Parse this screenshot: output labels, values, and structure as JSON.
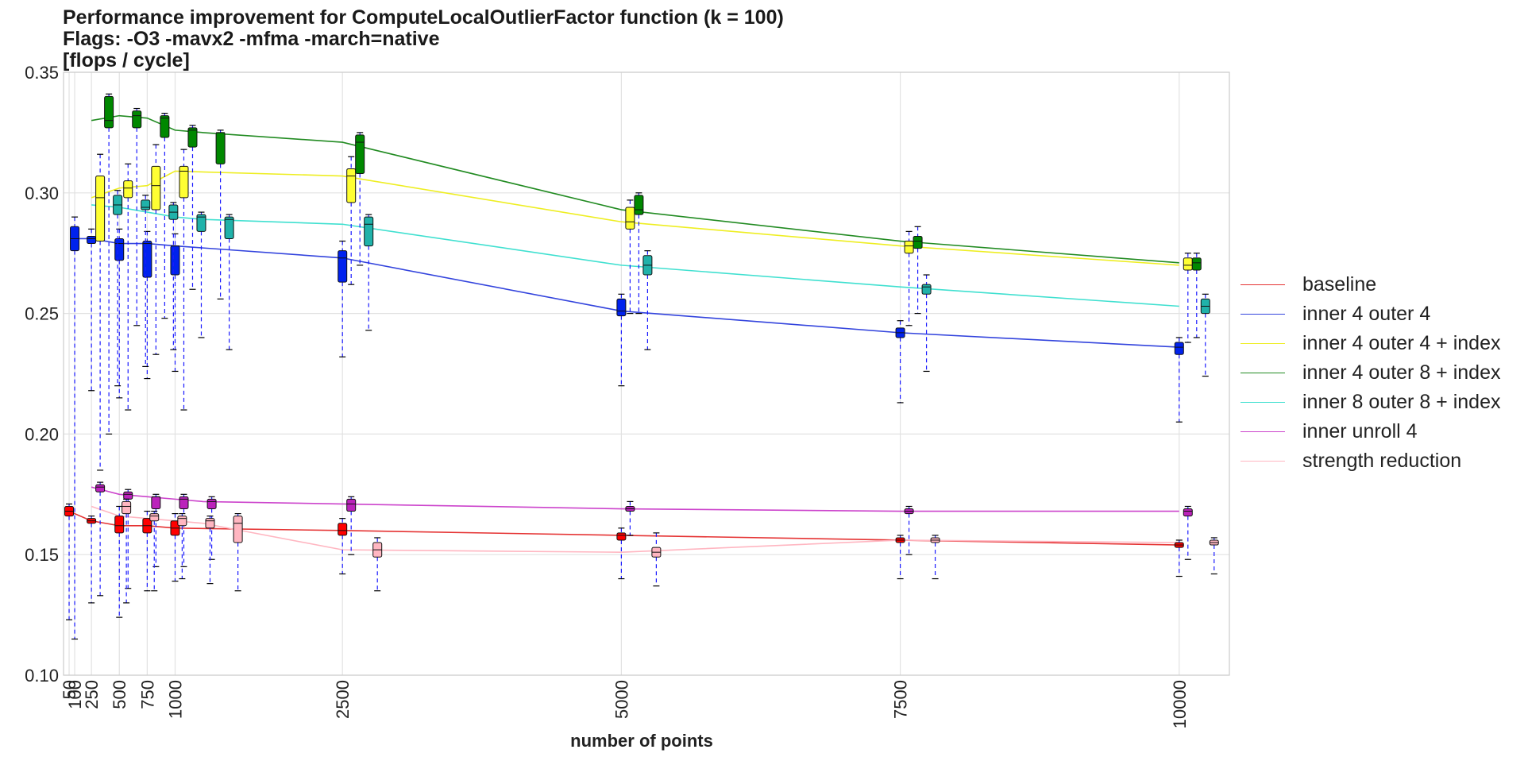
{
  "chart_data": {
    "type": "box",
    "title_lines": [
      "Performance improvement for ComputeLocalOutlierFactor function (k = 100)",
      "Flags: -O3 -mavx2 -mfma -march=native",
      "[flops / cycle]"
    ],
    "xlabel": "number of points",
    "ylabel": "",
    "xlim": [
      0,
      10450
    ],
    "ylim": [
      0.1,
      0.35
    ],
    "x_ticks": [
      50,
      100,
      250,
      500,
      750,
      1000,
      2500,
      5000,
      7500,
      10000
    ],
    "y_ticks": [
      "0.10",
      "0.15",
      "0.20",
      "0.25",
      "0.30",
      "0.35"
    ],
    "grid": true,
    "legend_position": "right",
    "series": [
      {
        "name": "baseline",
        "color": "#ff0000",
        "line_color": "#e53333",
        "offset": 0,
        "points": [
          {
            "x": 50,
            "median": 0.168,
            "q1": 0.166,
            "q3": 0.17,
            "min": 0.123,
            "max": 0.171
          },
          {
            "x": 250,
            "median": 0.164,
            "q1": 0.163,
            "q3": 0.165,
            "min": 0.13,
            "max": 0.166
          },
          {
            "x": 500,
            "median": 0.162,
            "q1": 0.159,
            "q3": 0.166,
            "min": 0.124,
            "max": 0.17
          },
          {
            "x": 750,
            "median": 0.162,
            "q1": 0.159,
            "q3": 0.165,
            "min": 0.135,
            "max": 0.168
          },
          {
            "x": 1000,
            "median": 0.161,
            "q1": 0.158,
            "q3": 0.164,
            "min": 0.139,
            "max": 0.167
          },
          {
            "x": 2500,
            "median": 0.16,
            "q1": 0.158,
            "q3": 0.163,
            "min": 0.142,
            "max": 0.165
          },
          {
            "x": 5000,
            "median": 0.158,
            "q1": 0.156,
            "q3": 0.159,
            "min": 0.14,
            "max": 0.161
          },
          {
            "x": 7500,
            "median": 0.156,
            "q1": 0.155,
            "q3": 0.157,
            "min": 0.14,
            "max": 0.158
          },
          {
            "x": 10000,
            "median": 0.154,
            "q1": 0.153,
            "q3": 0.155,
            "min": 0.141,
            "max": 0.156
          }
        ]
      },
      {
        "name": "inner 4 outer 4",
        "color": "#0022ee",
        "line_color": "#3344dd",
        "offset": 0,
        "points": [
          {
            "x": 100,
            "median": 0.281,
            "q1": 0.276,
            "q3": 0.286,
            "min": 0.115,
            "max": 0.29
          },
          {
            "x": 250,
            "median": 0.281,
            "q1": 0.279,
            "q3": 0.282,
            "min": 0.218,
            "max": 0.285
          },
          {
            "x": 500,
            "median": 0.279,
            "q1": 0.272,
            "q3": 0.281,
            "min": 0.215,
            "max": 0.285
          },
          {
            "x": 750,
            "median": 0.279,
            "q1": 0.265,
            "q3": 0.28,
            "min": 0.223,
            "max": 0.284
          },
          {
            "x": 1000,
            "median": 0.278,
            "q1": 0.266,
            "q3": 0.278,
            "min": 0.226,
            "max": 0.283
          },
          {
            "x": 2500,
            "median": 0.273,
            "q1": 0.263,
            "q3": 0.276,
            "min": 0.232,
            "max": 0.28
          },
          {
            "x": 5000,
            "median": 0.251,
            "q1": 0.249,
            "q3": 0.256,
            "min": 0.22,
            "max": 0.258
          },
          {
            "x": 7500,
            "median": 0.242,
            "q1": 0.24,
            "q3": 0.244,
            "min": 0.213,
            "max": 0.247
          },
          {
            "x": 10000,
            "median": 0.236,
            "q1": 0.233,
            "q3": 0.238,
            "min": 0.205,
            "max": 0.24
          }
        ]
      },
      {
        "name": "inner 4 outer 4 + index",
        "color": "#ffff33",
        "line_color": "#eeee22",
        "offset": 1,
        "points": [
          {
            "x": 250,
            "median": 0.298,
            "q1": 0.28,
            "q3": 0.307,
            "min": 0.185,
            "max": 0.316
          },
          {
            "x": 500,
            "median": 0.302,
            "q1": 0.298,
            "q3": 0.305,
            "min": 0.21,
            "max": 0.312
          },
          {
            "x": 750,
            "median": 0.303,
            "q1": 0.293,
            "q3": 0.311,
            "min": 0.233,
            "max": 0.32
          },
          {
            "x": 1000,
            "median": 0.309,
            "q1": 0.298,
            "q3": 0.311,
            "min": 0.21,
            "max": 0.318
          },
          {
            "x": 2500,
            "median": 0.307,
            "q1": 0.296,
            "q3": 0.31,
            "min": 0.262,
            "max": 0.315
          },
          {
            "x": 5000,
            "median": 0.288,
            "q1": 0.285,
            "q3": 0.294,
            "min": 0.25,
            "max": 0.297
          },
          {
            "x": 7500,
            "median": 0.278,
            "q1": 0.275,
            "q3": 0.28,
            "min": 0.245,
            "max": 0.284
          },
          {
            "x": 10000,
            "median": 0.27,
            "q1": 0.268,
            "q3": 0.273,
            "min": 0.238,
            "max": 0.275
          }
        ]
      },
      {
        "name": "inner 4 outer 8 + index",
        "color": "#008800",
        "line_color": "#228b22",
        "offset": 2,
        "points": [
          {
            "x": 250,
            "median": 0.33,
            "q1": 0.327,
            "q3": 0.34,
            "min": 0.2,
            "max": 0.341
          },
          {
            "x": 500,
            "median": 0.332,
            "q1": 0.327,
            "q3": 0.334,
            "min": 0.245,
            "max": 0.335
          },
          {
            "x": 750,
            "median": 0.331,
            "q1": 0.323,
            "q3": 0.332,
            "min": 0.248,
            "max": 0.333
          },
          {
            "x": 1000,
            "median": 0.326,
            "q1": 0.319,
            "q3": 0.327,
            "min": 0.26,
            "max": 0.328
          },
          {
            "x": 1250,
            "median": 0.325,
            "q1": 0.312,
            "q3": 0.325,
            "min": 0.256,
            "max": 0.326
          },
          {
            "x": 2500,
            "median": 0.321,
            "q1": 0.308,
            "q3": 0.324,
            "min": 0.27,
            "max": 0.325
          },
          {
            "x": 5000,
            "median": 0.293,
            "q1": 0.291,
            "q3": 0.299,
            "min": 0.25,
            "max": 0.3
          },
          {
            "x": 7500,
            "median": 0.28,
            "q1": 0.277,
            "q3": 0.282,
            "min": 0.25,
            "max": 0.286
          },
          {
            "x": 10000,
            "median": 0.271,
            "q1": 0.268,
            "q3": 0.273,
            "min": 0.24,
            "max": 0.275
          }
        ]
      },
      {
        "name": "inner 8 outer 8 + index",
        "color": "#20b2aa",
        "line_color": "#40e0d0",
        "offset": 3,
        "points": [
          {
            "x": 250,
            "median": 0.295,
            "q1": 0.291,
            "q3": 0.299,
            "min": 0.22,
            "max": 0.301
          },
          {
            "x": 500,
            "median": 0.294,
            "q1": 0.293,
            "q3": 0.297,
            "min": 0.228,
            "max": 0.299
          },
          {
            "x": 750,
            "median": 0.292,
            "q1": 0.289,
            "q3": 0.295,
            "min": 0.235,
            "max": 0.296
          },
          {
            "x": 1000,
            "median": 0.29,
            "q1": 0.284,
            "q3": 0.291,
            "min": 0.24,
            "max": 0.292
          },
          {
            "x": 1250,
            "median": 0.289,
            "q1": 0.281,
            "q3": 0.29,
            "min": 0.235,
            "max": 0.291
          },
          {
            "x": 2500,
            "median": 0.287,
            "q1": 0.278,
            "q3": 0.29,
            "min": 0.243,
            "max": 0.291
          },
          {
            "x": 5000,
            "median": 0.27,
            "q1": 0.266,
            "q3": 0.274,
            "min": 0.235,
            "max": 0.276
          },
          {
            "x": 7500,
            "median": 0.261,
            "q1": 0.258,
            "q3": 0.262,
            "min": 0.226,
            "max": 0.266
          },
          {
            "x": 10000,
            "median": 0.253,
            "q1": 0.25,
            "q3": 0.256,
            "min": 0.224,
            "max": 0.258
          }
        ]
      },
      {
        "name": "inner unroll 4",
        "color": "#bb22bb",
        "line_color": "#cc44cc",
        "offset": 1,
        "points": [
          {
            "x": 250,
            "median": 0.178,
            "q1": 0.176,
            "q3": 0.179,
            "min": 0.133,
            "max": 0.18
          },
          {
            "x": 500,
            "median": 0.175,
            "q1": 0.173,
            "q3": 0.176,
            "min": 0.136,
            "max": 0.177
          },
          {
            "x": 750,
            "median": 0.174,
            "q1": 0.169,
            "q3": 0.174,
            "min": 0.145,
            "max": 0.175
          },
          {
            "x": 1000,
            "median": 0.173,
            "q1": 0.169,
            "q3": 0.174,
            "min": 0.145,
            "max": 0.175
          },
          {
            "x": 1250,
            "median": 0.172,
            "q1": 0.169,
            "q3": 0.173,
            "min": 0.148,
            "max": 0.174
          },
          {
            "x": 2500,
            "median": 0.171,
            "q1": 0.168,
            "q3": 0.173,
            "min": 0.15,
            "max": 0.174
          },
          {
            "x": 5000,
            "median": 0.169,
            "q1": 0.168,
            "q3": 0.17,
            "min": 0.158,
            "max": 0.172
          },
          {
            "x": 7500,
            "median": 0.168,
            "q1": 0.167,
            "q3": 0.169,
            "min": 0.15,
            "max": 0.17
          },
          {
            "x": 10000,
            "median": 0.168,
            "q1": 0.166,
            "q3": 0.169,
            "min": 0.148,
            "max": 0.17
          }
        ]
      },
      {
        "name": "strength reduction",
        "color": "#ffb6c1",
        "line_color": "#ffb6c1",
        "offset": 4,
        "points": [
          {
            "x": 250,
            "median": 0.17,
            "q1": 0.167,
            "q3": 0.172,
            "min": 0.13,
            "max": 0.173
          },
          {
            "x": 500,
            "median": 0.166,
            "q1": 0.164,
            "q3": 0.167,
            "min": 0.135,
            "max": 0.168
          },
          {
            "x": 750,
            "median": 0.165,
            "q1": 0.162,
            "q3": 0.166,
            "min": 0.14,
            "max": 0.167
          },
          {
            "x": 1000,
            "median": 0.164,
            "q1": 0.161,
            "q3": 0.165,
            "min": 0.138,
            "max": 0.166
          },
          {
            "x": 1250,
            "median": 0.163,
            "q1": 0.155,
            "q3": 0.166,
            "min": 0.135,
            "max": 0.167
          },
          {
            "x": 2500,
            "median": 0.152,
            "q1": 0.149,
            "q3": 0.155,
            "min": 0.135,
            "max": 0.157
          },
          {
            "x": 5000,
            "median": 0.151,
            "q1": 0.149,
            "q3": 0.153,
            "min": 0.137,
            "max": 0.159
          },
          {
            "x": 7500,
            "median": 0.156,
            "q1": 0.155,
            "q3": 0.157,
            "min": 0.14,
            "max": 0.158
          },
          {
            "x": 10000,
            "median": 0.155,
            "q1": 0.154,
            "q3": 0.156,
            "min": 0.142,
            "max": 0.157
          }
        ]
      }
    ]
  }
}
